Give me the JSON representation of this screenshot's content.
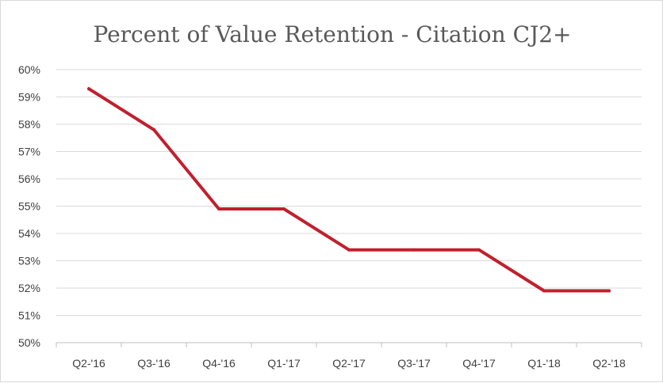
{
  "chart_data": {
    "type": "line",
    "title": "Percent of Value Retention - Citation CJ2+",
    "xlabel": "",
    "ylabel": "",
    "categories": [
      "Q2-'16",
      "Q3-'16",
      "Q4-'16",
      "Q1-'17",
      "Q2-'17",
      "Q3-'17",
      "Q4-'17",
      "Q1-'18",
      "Q2-'18"
    ],
    "series": [
      {
        "values": [
          59.3,
          57.8,
          54.9,
          54.9,
          53.4,
          53.4,
          53.4,
          51.9,
          51.9
        ],
        "color": "#c0202e"
      }
    ],
    "ylim": [
      50,
      60
    ],
    "yticks": [
      "50%",
      "51%",
      "52%",
      "53%",
      "54%",
      "55%",
      "56%",
      "57%",
      "58%",
      "59%",
      "60%"
    ],
    "grid": true,
    "legend": "none"
  }
}
